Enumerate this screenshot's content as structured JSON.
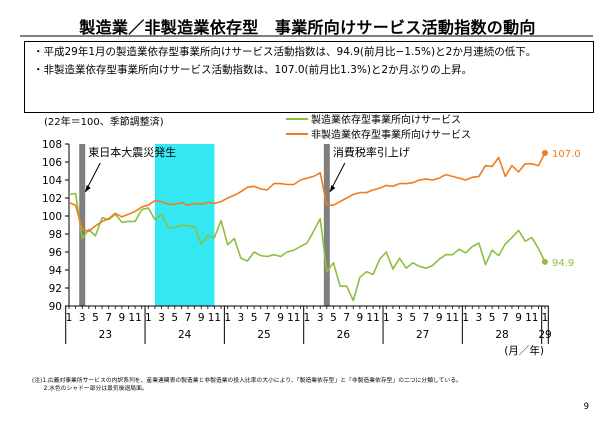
{
  "header": {
    "title": "製造業／非製造業依存型　事業所向けサービス活動指数の動向"
  },
  "summary": {
    "bullets": [
      "・平成29年1月の製造業依存型事業所向けサービス活動指数は、94.9(前月比−1.5%)と2か月連続の低下。",
      "・非製造業依存型事業所向けサービス活動指数は、107.0(前月比1.3%)と2か月ぶりの上昇。"
    ]
  },
  "chart_data": {
    "type": "line",
    "index_note": "(22年＝100、季節調整済)",
    "x_unit": "(月／年)",
    "ylim": [
      90,
      108
    ],
    "y_ticks": [
      90,
      92,
      94,
      96,
      98,
      100,
      102,
      104,
      106,
      108
    ],
    "grid": false,
    "legend_placement": "top-right",
    "month_tick_labels": [
      "1",
      "3",
      "5",
      "7",
      "9",
      "11"
    ],
    "year_labels": [
      {
        "label": "23",
        "start_index": 0
      },
      {
        "label": "24",
        "start_index": 12
      },
      {
        "label": "25",
        "start_index": 24
      },
      {
        "label": "26",
        "start_index": 36
      },
      {
        "label": "27",
        "start_index": 48
      },
      {
        "label": "28",
        "start_index": 60
      },
      {
        "label": "29",
        "start_index": 72
      }
    ],
    "shaded_period": {
      "start_index": 13,
      "end_index": 22,
      "color": "#33e8f2"
    },
    "event_markers": [
      {
        "index": 2,
        "label": "東日本大震災発生",
        "color": "#7f7f7f"
      },
      {
        "index": 39,
        "label": "消費税率引上げ",
        "color": "#7f7f7f"
      }
    ],
    "series": [
      {
        "name": "製造業依存型事業所向けサービス",
        "color": "#8cbf3f",
        "end_label": "94.9",
        "values": [
          102.4,
          102.5,
          97.5,
          98.5,
          97.8,
          99.8,
          99.6,
          100.2,
          99.3,
          99.4,
          99.4,
          100.7,
          100.9,
          99.6,
          100.2,
          98.7,
          98.7,
          99.0,
          98.9,
          98.8,
          96.9,
          97.8,
          97.6,
          99.5,
          96.8,
          97.5,
          95.3,
          95.0,
          96.0,
          95.6,
          95.5,
          95.7,
          95.5,
          96.0,
          96.2,
          96.6,
          97.0,
          98.3,
          99.7,
          93.8,
          94.8,
          92.2,
          92.2,
          90.6,
          93.2,
          93.8,
          93.5,
          95.2,
          96.0,
          94.1,
          95.3,
          94.2,
          94.8,
          94.4,
          94.2,
          94.5,
          95.2,
          95.7,
          95.7,
          96.3,
          95.9,
          96.6,
          97.0,
          94.6,
          96.2,
          95.6,
          96.9,
          97.6,
          98.4,
          97.2,
          97.6,
          96.4,
          94.9
        ]
      },
      {
        "name": "非製造業依存型事業所向けサービス",
        "color": "#f07c1e",
        "end_label": "107.0",
        "values": [
          101.5,
          101.2,
          98.5,
          98.3,
          98.9,
          99.4,
          99.7,
          100.3,
          99.9,
          100.2,
          100.5,
          101.0,
          101.2,
          101.7,
          101.6,
          101.3,
          101.3,
          101.5,
          101.2,
          101.4,
          101.3,
          101.5,
          101.4,
          101.6,
          102.0,
          102.3,
          102.7,
          103.2,
          103.3,
          103.0,
          102.9,
          103.6,
          103.6,
          103.5,
          103.5,
          104.0,
          104.2,
          104.4,
          104.8,
          101.2,
          101.2,
          101.6,
          102.0,
          102.4,
          102.6,
          102.6,
          102.9,
          103.1,
          103.4,
          103.3,
          103.6,
          103.6,
          103.7,
          104.0,
          104.1,
          104.0,
          104.2,
          104.6,
          104.4,
          104.2,
          104.0,
          104.3,
          104.4,
          105.6,
          105.5,
          106.5,
          104.4,
          105.6,
          104.9,
          105.8,
          105.8,
          105.6,
          107.0
        ]
      }
    ]
  },
  "footnote": {
    "lines": [
      "(注)1.広義対事業所サービスの内訳系列を、産業連関表の製造業と非製造業の投入比率の大小により、「製造業依存型」と「非製造業依存型」の二つに分類している。",
      "　　2.水色のシャドー部分は景気後退局面。"
    ]
  },
  "page": {
    "number": "9"
  }
}
